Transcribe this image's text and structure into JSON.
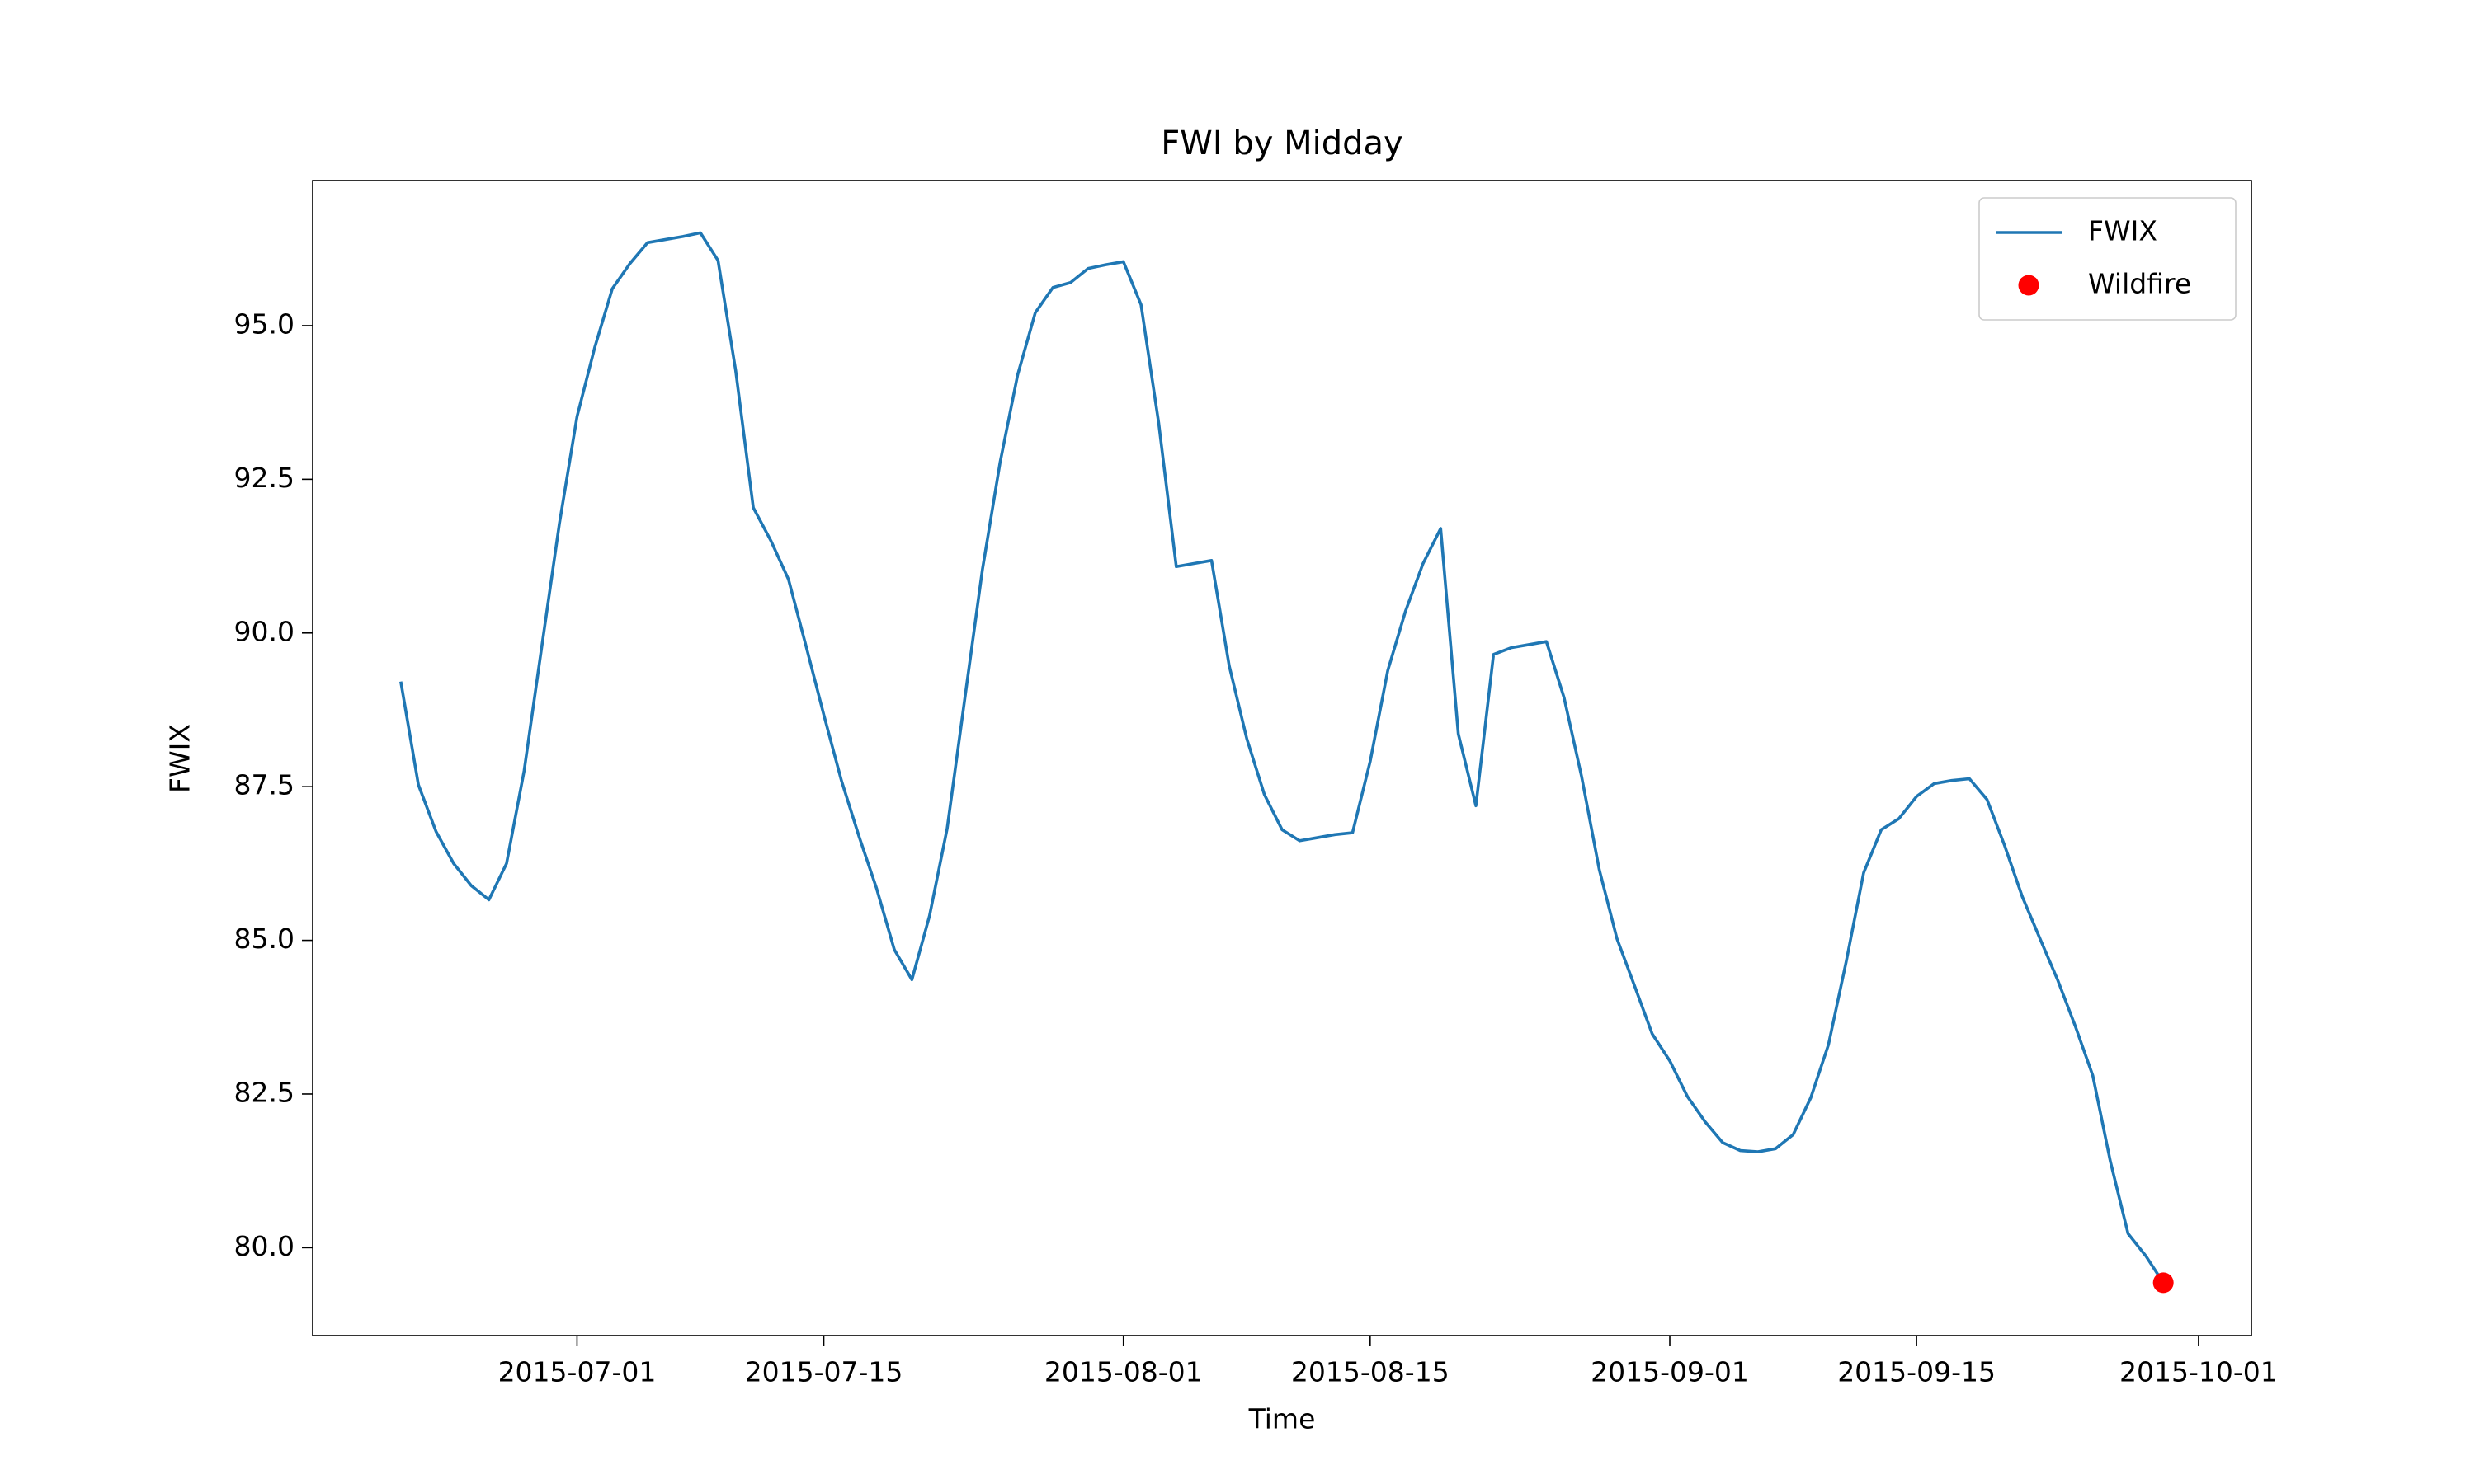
{
  "chart_data": {
    "type": "line",
    "title": "FWI by Midday",
    "xlabel": "Time",
    "ylabel": "FWIX",
    "x": [
      "2015-06-21",
      "2015-06-22",
      "2015-06-23",
      "2015-06-24",
      "2015-06-25",
      "2015-06-26",
      "2015-06-27",
      "2015-06-28",
      "2015-06-29",
      "2015-06-30",
      "2015-07-01",
      "2015-07-02",
      "2015-07-03",
      "2015-07-04",
      "2015-07-05",
      "2015-07-06",
      "2015-07-07",
      "2015-07-08",
      "2015-07-09",
      "2015-07-10",
      "2015-07-11",
      "2015-07-12",
      "2015-07-13",
      "2015-07-14",
      "2015-07-15",
      "2015-07-16",
      "2015-07-17",
      "2015-07-18",
      "2015-07-19",
      "2015-07-20",
      "2015-07-21",
      "2015-07-22",
      "2015-07-23",
      "2015-07-24",
      "2015-07-25",
      "2015-07-26",
      "2015-07-27",
      "2015-07-28",
      "2015-07-29",
      "2015-07-30",
      "2015-07-31",
      "2015-08-01",
      "2015-08-02",
      "2015-08-03",
      "2015-08-04",
      "2015-08-05",
      "2015-08-06",
      "2015-08-07",
      "2015-08-08",
      "2015-08-09",
      "2015-08-10",
      "2015-08-11",
      "2015-08-12",
      "2015-08-13",
      "2015-08-14",
      "2015-08-15",
      "2015-08-16",
      "2015-08-17",
      "2015-08-18",
      "2015-08-19",
      "2015-08-20",
      "2015-08-21",
      "2015-08-22",
      "2015-08-23",
      "2015-08-24",
      "2015-08-25",
      "2015-08-26",
      "2015-08-27",
      "2015-08-28",
      "2015-08-29",
      "2015-08-30",
      "2015-08-31",
      "2015-09-01",
      "2015-09-02",
      "2015-09-03",
      "2015-09-04",
      "2015-09-05",
      "2015-09-06",
      "2015-09-07",
      "2015-09-08",
      "2015-09-09",
      "2015-09-10",
      "2015-09-11",
      "2015-09-12",
      "2015-09-13",
      "2015-09-14",
      "2015-09-15",
      "2015-09-16",
      "2015-09-17",
      "2015-09-18",
      "2015-09-19",
      "2015-09-20",
      "2015-09-21",
      "2015-09-22",
      "2015-09-23",
      "2015-09-24",
      "2015-09-25",
      "2015-09-26",
      "2015-09-27",
      "2015-09-28",
      "2015-09-29"
    ],
    "series": [
      {
        "name": "FWIX",
        "type": "line",
        "color": "#1f77b4",
        "values": [
          89.21,
          87.53,
          86.77,
          86.25,
          85.89,
          85.66,
          86.25,
          87.76,
          89.78,
          91.78,
          93.52,
          94.64,
          95.6,
          96.01,
          96.35,
          96.4,
          96.45,
          96.51,
          96.06,
          94.27,
          92.04,
          91.5,
          90.87,
          89.78,
          88.67,
          87.6,
          86.69,
          85.84,
          84.85,
          84.36,
          85.4,
          86.82,
          88.93,
          91.03,
          92.77,
          94.2,
          95.21,
          95.62,
          95.7,
          95.93,
          95.99,
          96.04,
          95.34,
          93.42,
          91.08,
          91.13,
          91.18,
          89.47,
          88.28,
          87.37,
          86.8,
          86.62,
          86.67,
          86.72,
          86.75,
          87.91,
          89.39,
          90.35,
          91.13,
          91.7,
          88.36,
          87.19,
          89.65,
          89.76,
          89.81,
          89.86,
          88.95,
          87.66,
          86.15,
          85.03,
          84.26,
          83.48,
          83.04,
          82.46,
          82.05,
          81.71,
          81.58,
          81.56,
          81.61,
          81.84,
          82.44,
          83.3,
          84.64,
          86.1,
          86.8,
          86.98,
          87.34,
          87.55,
          87.6,
          87.63,
          87.29,
          86.54,
          85.71,
          85.03,
          84.36,
          83.61,
          82.8,
          81.4,
          80.23,
          79.87,
          79.43
        ]
      },
      {
        "name": "Wildfire",
        "type": "scatter",
        "color": "#ff0000",
        "x": [
          "2015-09-29"
        ],
        "values": [
          79.43
        ]
      }
    ],
    "xlim": [
      "2015-06-16",
      "2015-10-04"
    ],
    "xticks": [
      "2015-07-01",
      "2015-07-15",
      "2015-08-01",
      "2015-08-15",
      "2015-09-01",
      "2015-09-15",
      "2015-10-01"
    ],
    "ylim": [
      78.57,
      97.36
    ],
    "yticks": [
      {
        "value": 80,
        "label": "80.0"
      },
      {
        "value": 82.5,
        "label": "82.5"
      },
      {
        "value": 85,
        "label": "85.0"
      },
      {
        "value": 87.5,
        "label": "87.5"
      },
      {
        "value": 90,
        "label": "90.0"
      },
      {
        "value": 92.5,
        "label": "92.5"
      },
      {
        "value": 95,
        "label": "95.0"
      }
    ],
    "legend": "upper right",
    "grid": false
  }
}
